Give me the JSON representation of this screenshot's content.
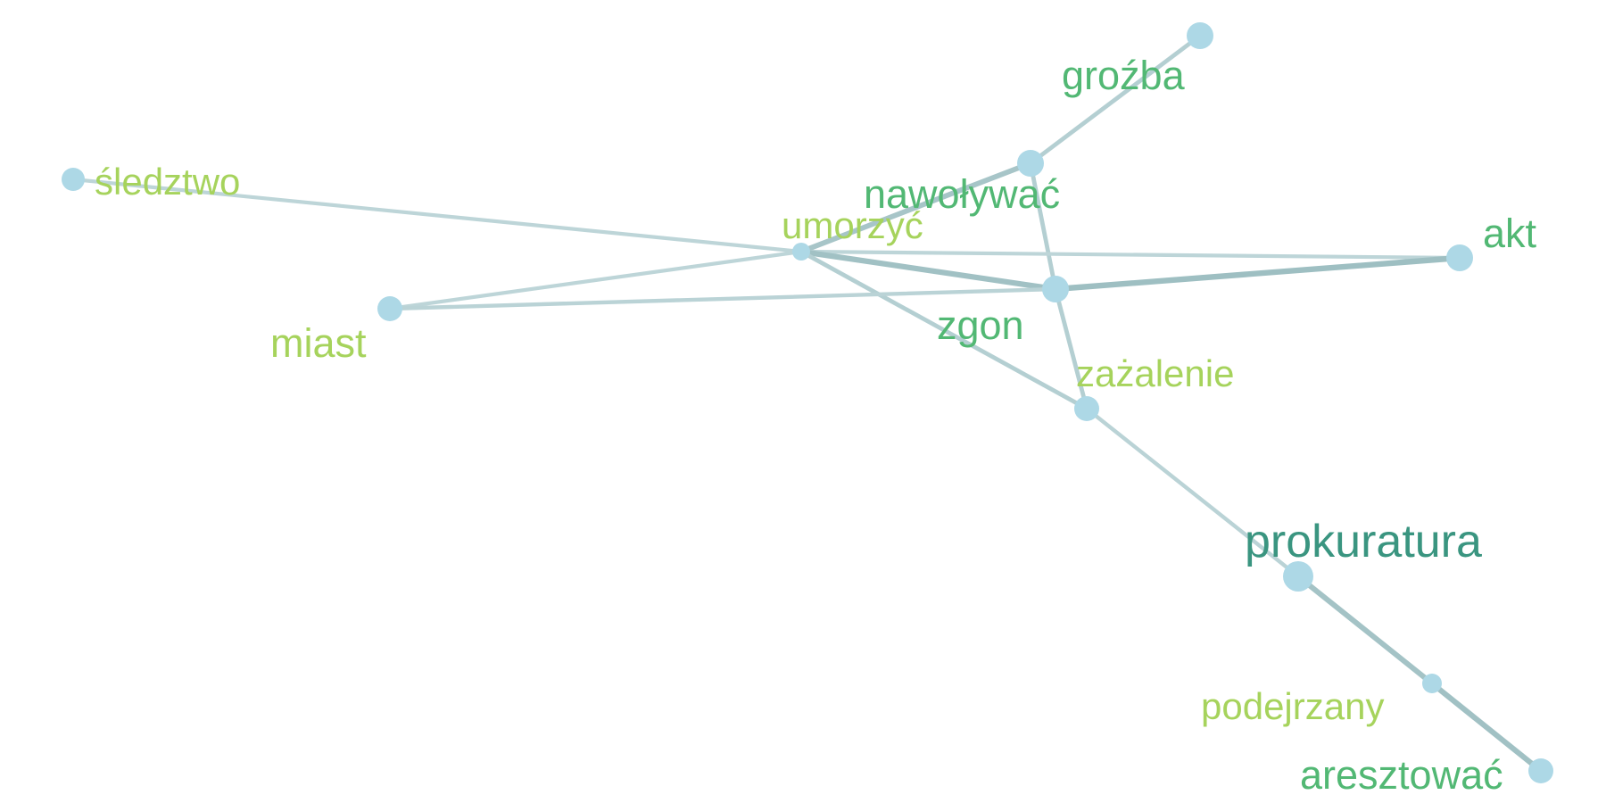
{
  "graph": {
    "node_color": "#add8e6",
    "nodes": [
      {
        "id": "grozba",
        "label": "groźba",
        "label_color": "#52b874",
        "weight": 2
      },
      {
        "id": "nawolywac",
        "label": "nawoływać",
        "label_color": "#52b874",
        "weight": 2
      },
      {
        "id": "sledztwo",
        "label": "śledztwo",
        "label_color": "#a6d35c",
        "weight": 1
      },
      {
        "id": "umorzyc",
        "label": "umorzyć",
        "label_color": "#a6d35c",
        "weight": 1
      },
      {
        "id": "akt",
        "label": "akt",
        "label_color": "#52b874",
        "weight": 2
      },
      {
        "id": "zgon",
        "label": "zgon",
        "label_color": "#52b874",
        "weight": 2
      },
      {
        "id": "miast",
        "label": "miast",
        "label_color": "#a6d35c",
        "weight": 1
      },
      {
        "id": "zazalenie",
        "label": "zażalenie",
        "label_color": "#a6d35c",
        "weight": 1
      },
      {
        "id": "prokuratura",
        "label": "prokuratura",
        "label_color": "#3a9580",
        "weight": 3
      },
      {
        "id": "podejrzany",
        "label": "podejrzany",
        "label_color": "#a6d35c",
        "weight": 1
      },
      {
        "id": "aresztowac",
        "label": "aresztować",
        "label_color": "#52b874",
        "weight": 2
      }
    ],
    "edges": [
      {
        "source": "grozba",
        "target": "nawolywac",
        "strength": 0.45
      },
      {
        "source": "nawolywac",
        "target": "umorzyc",
        "strength": 0.7
      },
      {
        "source": "nawolywac",
        "target": "zgon",
        "strength": 0.45
      },
      {
        "source": "sledztwo",
        "target": "umorzyc",
        "strength": 0.3
      },
      {
        "source": "umorzyc",
        "target": "akt",
        "strength": 0.3
      },
      {
        "source": "umorzyc",
        "target": "zgon",
        "strength": 0.8
      },
      {
        "source": "umorzyc",
        "target": "miast",
        "strength": 0.3
      },
      {
        "source": "umorzyc",
        "target": "zazalenie",
        "strength": 0.45
      },
      {
        "source": "zgon",
        "target": "akt",
        "strength": 0.85
      },
      {
        "source": "zgon",
        "target": "miast",
        "strength": 0.35
      },
      {
        "source": "zgon",
        "target": "zazalenie",
        "strength": 0.45
      },
      {
        "source": "zazalenie",
        "target": "prokuratura",
        "strength": 0.35
      },
      {
        "source": "prokuratura",
        "target": "podejrzany",
        "strength": 0.75
      },
      {
        "source": "podejrzany",
        "target": "aresztowac",
        "strength": 0.8
      }
    ]
  }
}
